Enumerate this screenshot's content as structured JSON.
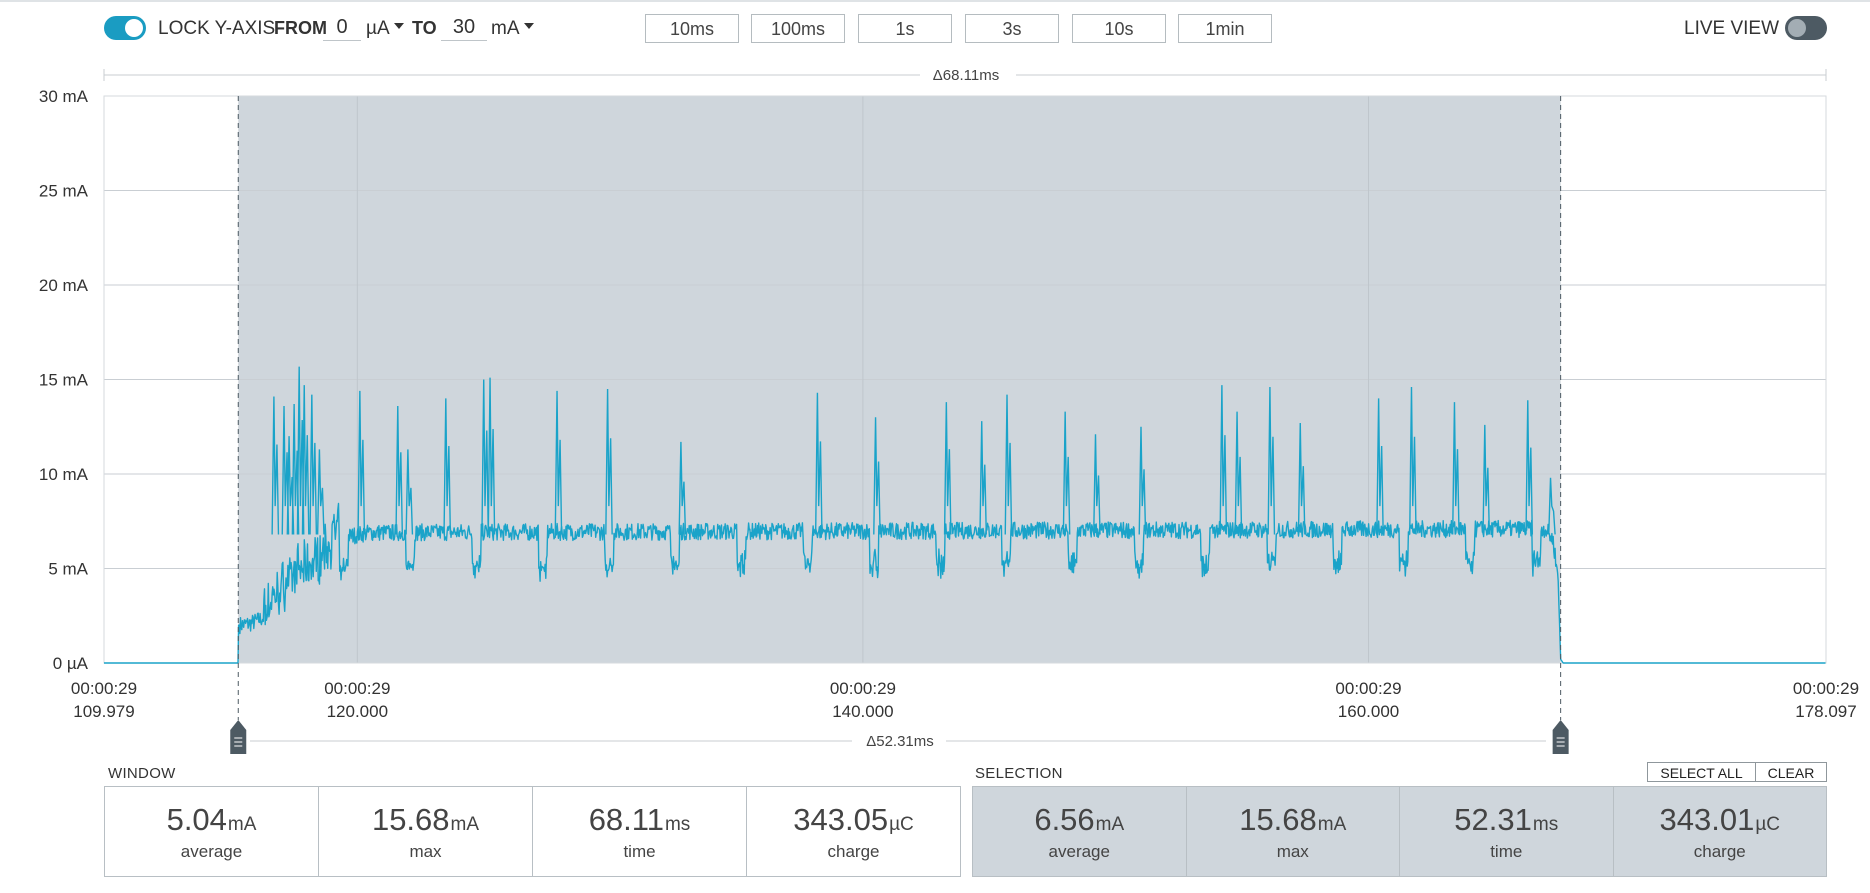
{
  "toolbar": {
    "lock_label": "LOCK Y-AXIS",
    "lock_enabled": true,
    "from_label": "FROM",
    "from_value": "0",
    "from_unit": "µA",
    "to_label": "TO",
    "to_value": "30",
    "to_unit": "mA",
    "window_buttons": [
      "10ms",
      "100ms",
      "1s",
      "3s",
      "10s",
      "1min"
    ],
    "live_view_label": "LIVE VIEW",
    "live_view_enabled": false
  },
  "chart": {
    "window_delta": "Δ68.11ms",
    "selection_delta": "Δ52.31ms",
    "y_tick_labels": [
      "0 µA",
      "5 mA",
      "10 mA",
      "15 mA",
      "20 mA",
      "25 mA",
      "30 mA"
    ],
    "x_ticks": [
      {
        "line1": "00:00:29",
        "line2": "109.979"
      },
      {
        "line1": "00:00:29",
        "line2": "120.000"
      },
      {
        "line1": "00:00:29",
        "line2": "140.000"
      },
      {
        "line1": "00:00:29",
        "line2": "160.000"
      },
      {
        "line1": "00:00:29",
        "line2": "178.097"
      }
    ],
    "line_color": "#1aa3c9",
    "selection_color": "#cfd6dc"
  },
  "chart_data": {
    "type": "line",
    "title": "",
    "xlabel": "",
    "ylabel": "",
    "x_unit": "ms",
    "y_unit": "mA",
    "xlim": [
      109.979,
      178.097
    ],
    "ylim": [
      0,
      30
    ],
    "x_tick_values": [
      109.979,
      120.0,
      140.0,
      160.0,
      178.097
    ],
    "y_tick_values": [
      0,
      5,
      10,
      15,
      20,
      25,
      30
    ],
    "grid": true,
    "selection_range": [
      115.29,
      167.6
    ],
    "baseline_ma": 6.8,
    "series": [
      {
        "values": [
          [
            109.979,
            0
          ],
          [
            115.28,
            0
          ],
          [
            115.3,
            2.0
          ],
          [
            115.8,
            2.1
          ],
          [
            116.3,
            2.4
          ],
          [
            116.8,
            3.2
          ],
          [
            117.2,
            3.9
          ],
          [
            117.6,
            4.4
          ],
          [
            118.0,
            4.6
          ],
          [
            118.6,
            5.3
          ],
          [
            119.2,
            6.6
          ],
          [
            120.5,
            6.9
          ],
          [
            167.0,
            7.1
          ],
          [
            167.3,
            6.5
          ],
          [
            167.5,
            4.5
          ],
          [
            167.6,
            0.2
          ],
          [
            167.7,
            0
          ],
          [
            178.097,
            0
          ]
        ]
      },
      {
        "spikes": [
          [
            116.7,
            14.1
          ],
          [
            117.1,
            13.6
          ],
          [
            117.3,
            12.0
          ],
          [
            117.5,
            13.7
          ],
          [
            117.7,
            15.68
          ],
          [
            117.9,
            14.7
          ],
          [
            118.2,
            14.2
          ],
          [
            118.5,
            11.3
          ],
          [
            120.1,
            14.4
          ],
          [
            121.6,
            13.6
          ],
          [
            122.0,
            11.3
          ],
          [
            123.5,
            14.0
          ],
          [
            125.0,
            15.0
          ],
          [
            125.25,
            15.1
          ],
          [
            127.9,
            14.4
          ],
          [
            129.9,
            14.5
          ],
          [
            132.8,
            11.7
          ],
          [
            138.2,
            14.3
          ],
          [
            140.5,
            13.0
          ],
          [
            143.3,
            13.8
          ],
          [
            144.7,
            12.8
          ],
          [
            145.7,
            14.2
          ],
          [
            148.0,
            13.3
          ],
          [
            149.2,
            12.1
          ],
          [
            151.0,
            12.5
          ],
          [
            154.2,
            14.7
          ],
          [
            154.8,
            13.3
          ],
          [
            156.1,
            14.6
          ],
          [
            157.3,
            12.7
          ],
          [
            160.4,
            14.0
          ],
          [
            161.7,
            14.6
          ],
          [
            163.4,
            13.8
          ],
          [
            164.6,
            12.6
          ],
          [
            166.3,
            13.9
          ],
          [
            167.2,
            9.8
          ]
        ]
      }
    ]
  },
  "window_section": {
    "label": "WINDOW",
    "stats": [
      {
        "value": "5.04",
        "unit": "mA",
        "caption": "average"
      },
      {
        "value": "15.68",
        "unit": "mA",
        "caption": "max"
      },
      {
        "value": "68.11",
        "unit": "ms",
        "caption": "time"
      },
      {
        "value": "343.05",
        "unit": "µC",
        "caption": "charge"
      }
    ]
  },
  "selection_section": {
    "label": "SELECTION",
    "select_all_label": "SELECT ALL",
    "clear_label": "CLEAR",
    "stats": [
      {
        "value": "6.56",
        "unit": "mA",
        "caption": "average"
      },
      {
        "value": "15.68",
        "unit": "mA",
        "caption": "max"
      },
      {
        "value": "52.31",
        "unit": "ms",
        "caption": "time"
      },
      {
        "value": "343.01",
        "unit": "µC",
        "caption": "charge"
      }
    ]
  }
}
